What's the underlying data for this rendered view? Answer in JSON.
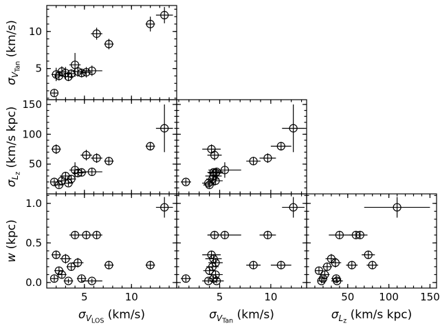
{
  "figure": {
    "description": "Corner scatter-plot matrix of velocity dispersions and stream width with error bars"
  },
  "chart_data": {
    "type": "scatter",
    "subtype": "corner-matrix-errorbar",
    "marker": {
      "shape": "open-circle",
      "color": "#000000"
    },
    "background": "#ffffff",
    "variables": [
      {
        "key": "vlos",
        "label_parts": {
          "base": "σ",
          "sub": "V",
          "subsub": "LOS",
          "unit": " (km/s)"
        },
        "range": [
          1.0,
          14.8
        ],
        "ticks": [
          5,
          10
        ],
        "tick_labels": [
          "5",
          "10"
        ],
        "minor_step": 1
      },
      {
        "key": "vtan",
        "label_parts": {
          "base": "σ",
          "sub": "V",
          "subsub": "Tan",
          "unit": " (km/s)"
        },
        "range": [
          0.8,
          13.5
        ],
        "ticks": [
          5,
          10
        ],
        "tick_labels": [
          "5",
          "10"
        ],
        "minor_step": 1
      },
      {
        "key": "lz",
        "label_parts": {
          "base": "σ",
          "sub": "L",
          "subsub": "z",
          "unit": " (km/s kpc)"
        },
        "range": [
          0,
          158
        ],
        "ticks": [
          50,
          100,
          150
        ],
        "tick_labels": [
          "50",
          "100",
          "150"
        ],
        "minor_step": 10
      },
      {
        "key": "w",
        "label_parts": {
          "base": "w",
          "sub": "",
          "subsub": "",
          "unit": " (kpc)"
        },
        "range": [
          -0.07,
          1.12
        ],
        "ticks": [
          0,
          0.5,
          1
        ],
        "tick_labels": [
          "0.0",
          "0.5",
          "1.0"
        ],
        "minor_step": 0.1
      }
    ],
    "panels": [
      {
        "row": 0,
        "col": 0,
        "x": "vlos",
        "y": "vtan",
        "x_labeled": false,
        "y_labeled": true
      },
      {
        "row": 1,
        "col": 0,
        "x": "vlos",
        "y": "lz",
        "x_labeled": false,
        "y_labeled": true
      },
      {
        "row": 1,
        "col": 1,
        "x": "vtan",
        "y": "lz",
        "x_labeled": false,
        "y_labeled": false
      },
      {
        "row": 2,
        "col": 0,
        "x": "vlos",
        "y": "w",
        "x_labeled": true,
        "y_labeled": true
      },
      {
        "row": 2,
        "col": 1,
        "x": "vtan",
        "y": "w",
        "x_labeled": true,
        "y_labeled": false
      },
      {
        "row": 2,
        "col": 2,
        "x": "lz",
        "y": "w",
        "x_labeled": true,
        "y_labeled": false
      }
    ],
    "points": [
      {
        "vlos": 1.8,
        "vtan": 1.7,
        "lz": 20,
        "w": 0.05,
        "e_vlos": 0.4,
        "e_vtan": 0.5,
        "e_lz": 5,
        "e_w": 0.04
      },
      {
        "vlos": 2.0,
        "vtan": 4.2,
        "lz": 75,
        "w": 0.35,
        "e_vlos": 0.5,
        "e_vtan": 0.9,
        "e_lz": 8,
        "e_w": 0.05
      },
      {
        "vlos": 2.3,
        "vtan": 4.0,
        "lz": 15,
        "w": 0.15,
        "e_vlos": 0.5,
        "e_vtan": 0.6,
        "e_lz": 5,
        "e_w": 0.05
      },
      {
        "vlos": 2.6,
        "vtan": 4.6,
        "lz": 22,
        "w": 0.1,
        "e_vlos": 0.5,
        "e_vtan": 0.7,
        "e_lz": 6,
        "e_w": 0.05
      },
      {
        "vlos": 3.0,
        "vtan": 4.4,
        "lz": 30,
        "w": 0.3,
        "e_vlos": 0.6,
        "e_vtan": 0.8,
        "e_lz": 7,
        "e_w": 0.06
      },
      {
        "vlos": 3.3,
        "vtan": 3.9,
        "lz": 18,
        "w": 0.02,
        "e_vlos": 0.5,
        "e_vtan": 0.6,
        "e_lz": 5,
        "e_w": 0.03
      },
      {
        "vlos": 3.6,
        "vtan": 4.3,
        "lz": 25,
        "w": 0.2,
        "e_vlos": 0.5,
        "e_vtan": 0.6,
        "e_lz": 6,
        "e_w": 0.05
      },
      {
        "vlos": 4.0,
        "vtan": 5.5,
        "lz": 40,
        "w": 0.6,
        "e_vlos": 0.6,
        "e_vtan": 1.6,
        "e_lz": 13,
        "e_w": 0.05
      },
      {
        "vlos": 4.3,
        "vtan": 4.6,
        "lz": 35,
        "w": 0.25,
        "e_vlos": 0.6,
        "e_vtan": 0.7,
        "e_lz": 7,
        "e_w": 0.06
      },
      {
        "vlos": 4.7,
        "vtan": 4.4,
        "lz": 36,
        "w": 0.05,
        "e_vlos": 0.5,
        "e_vtan": 0.6,
        "e_lz": 6,
        "e_w": 0.04
      },
      {
        "vlos": 5.2,
        "vtan": 4.5,
        "lz": 65,
        "w": 0.6,
        "e_vlos": 0.6,
        "e_vtan": 0.7,
        "e_lz": 9,
        "e_w": 0.05
      },
      {
        "vlos": 5.8,
        "vtan": 4.7,
        "lz": 37,
        "w": 0.02,
        "e_vlos": 1.1,
        "e_vtan": 0.7,
        "e_lz": 7,
        "e_w": 0.03
      },
      {
        "vlos": 6.3,
        "vtan": 9.7,
        "lz": 60,
        "w": 0.6,
        "e_vlos": 0.6,
        "e_vtan": 0.8,
        "e_lz": 8,
        "e_w": 0.05
      },
      {
        "vlos": 7.6,
        "vtan": 8.3,
        "lz": 55,
        "w": 0.22,
        "e_vlos": 0.5,
        "e_vtan": 0.7,
        "e_lz": 7,
        "e_w": 0.05
      },
      {
        "vlos": 12.0,
        "vtan": 11.0,
        "lz": 80,
        "w": 0.22,
        "e_vlos": 0.5,
        "e_vtan": 1.0,
        "e_lz": 7,
        "e_w": 0.05
      },
      {
        "vlos": 13.5,
        "vtan": 12.2,
        "lz": 110,
        "w": 0.95,
        "e_vlos": 0.9,
        "e_vtan": 1.1,
        "e_lz": 40,
        "e_w": 0.13
      }
    ],
    "grid": false,
    "legend": null,
    "title": ""
  }
}
